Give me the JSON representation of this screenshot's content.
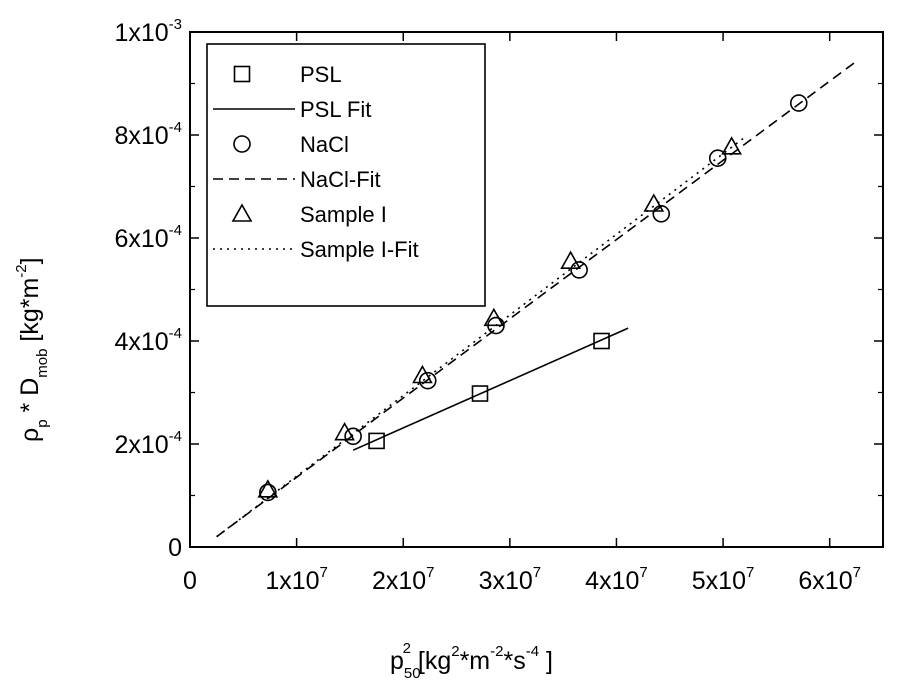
{
  "chart_data": {
    "type": "scatter",
    "xlabel": {
      "base": "p",
      "sub": "50",
      "sup": "2",
      "units_open": " [kg",
      "u1_sup": "2",
      "u1_mid": "*m",
      "u2_sup": "-2",
      "u2_mid": "*s",
      "u3_sup": "-4",
      "units_close": " ]"
    },
    "ylabel": {
      "base": "ρ",
      "sub1": "p",
      "mid": " * D",
      "sub2": "mob",
      "units_open": "  [kg*m",
      "u_sup": "-2",
      "units_close": "]"
    },
    "xlim": [
      0,
      65000000.0
    ],
    "ylim": [
      0,
      0.001
    ],
    "x_ticks": [
      {
        "value": 0,
        "base": "0",
        "exp": ""
      },
      {
        "value": 10000000.0,
        "base": "1x10",
        "exp": "7"
      },
      {
        "value": 20000000.0,
        "base": "2x10",
        "exp": "7"
      },
      {
        "value": 30000000.0,
        "base": "3x10",
        "exp": "7"
      },
      {
        "value": 40000000.0,
        "base": "4x10",
        "exp": "7"
      },
      {
        "value": 50000000.0,
        "base": "5x10",
        "exp": "7"
      },
      {
        "value": 60000000.0,
        "base": "6x10",
        "exp": "7"
      }
    ],
    "y_ticks": [
      {
        "value": 0,
        "base": "0",
        "exp": ""
      },
      {
        "value": 0.0002,
        "base": "2x10",
        "exp": "-4"
      },
      {
        "value": 0.0004,
        "base": "4x10",
        "exp": "-4"
      },
      {
        "value": 0.0006,
        "base": "6x10",
        "exp": "-4"
      },
      {
        "value": 0.0008,
        "base": "8x10",
        "exp": "-4"
      },
      {
        "value": 0.001,
        "base": "1x10",
        "exp": "-3"
      }
    ],
    "series": [
      {
        "name": "PSL",
        "marker": "square",
        "points": [
          [
            17500000.0,
            0.000206
          ],
          [
            27200000.0,
            0.000298
          ],
          [
            38600000.0,
            0.0004
          ]
        ]
      },
      {
        "name": "NaCl",
        "marker": "circle",
        "points": [
          [
            7300000.0,
            0.000106
          ],
          [
            15300000.0,
            0.000215
          ],
          [
            22300000.0,
            0.000323
          ],
          [
            28700000.0,
            0.00043
          ],
          [
            36500000.0,
            0.000538
          ],
          [
            44200000.0,
            0.000647
          ],
          [
            49500000.0,
            0.000755
          ],
          [
            57100000.0,
            0.000862
          ]
        ]
      },
      {
        "name": "Sample I",
        "marker": "triangle",
        "points": [
          [
            7300000.0,
            0.000111
          ],
          [
            14500000.0,
            0.000222
          ],
          [
            21800000.0,
            0.000333
          ],
          [
            28500000.0,
            0.000444
          ],
          [
            35700000.0,
            0.000555
          ],
          [
            43500000.0,
            0.000666
          ],
          [
            50800000.0,
            0.000777
          ]
        ]
      }
    ],
    "fits": [
      {
        "name": "PSL Fit",
        "style": "solid",
        "from": [
          15300000.0,
          0.000188
        ],
        "to": [
          41100000.0,
          0.000425
        ]
      },
      {
        "name": "NaCl-Fit",
        "style": "dashed",
        "from": [
          2500000.0,
          2e-05
        ],
        "to": [
          62300000.0,
          0.00094
        ]
      },
      {
        "name": "Sample I-Fit",
        "style": "dotted",
        "from": [
          2500000.0,
          2e-05
        ],
        "to": [
          52000000.0,
          0.000795
        ]
      }
    ],
    "legend": {
      "placement": "top-left",
      "entries": [
        {
          "symbol": "square",
          "label": "PSL"
        },
        {
          "symbol": "solid",
          "label": "PSL Fit"
        },
        {
          "symbol": "circle",
          "label": "NaCl"
        },
        {
          "symbol": "dashed",
          "label": "NaCl-Fit"
        },
        {
          "symbol": "triangle",
          "label": "Sample I"
        },
        {
          "symbol": "dotted",
          "label": "Sample I-Fit"
        }
      ]
    },
    "grid": false
  }
}
